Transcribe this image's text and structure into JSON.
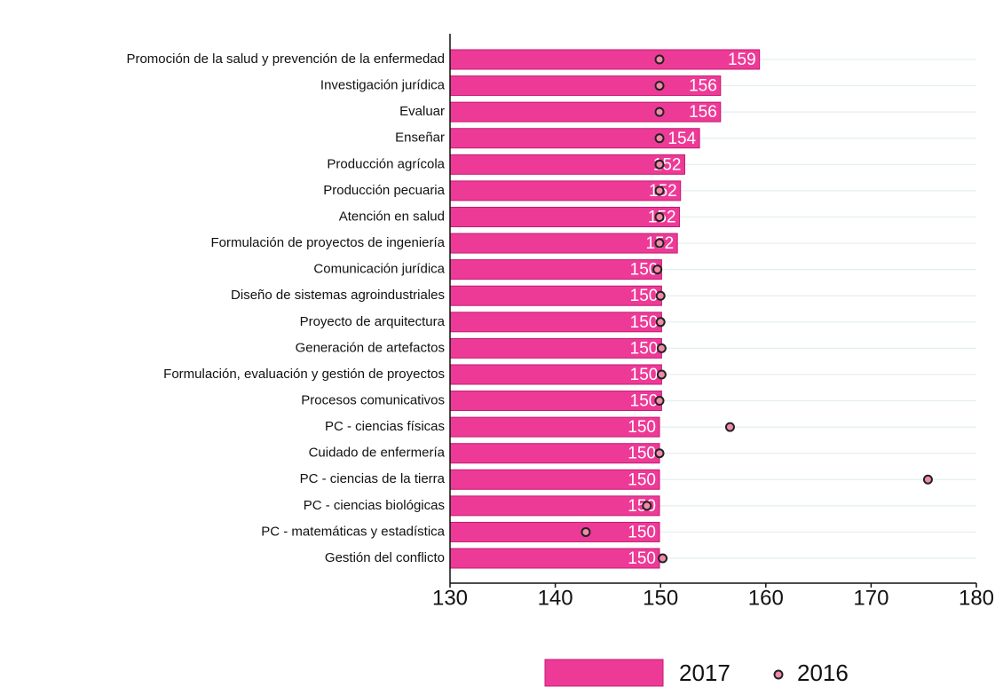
{
  "chart_data": {
    "type": "bar",
    "categories": [
      "Promoción de la salud y prevención de la enfermedad",
      "Investigación jurídica",
      "Evaluar",
      "Enseñar",
      "Producción agrícola",
      "Producción pecuaria",
      "Atención en salud",
      "Formulación de proyectos de ingeniería",
      "Comunicación jurídica",
      "Diseño de sistemas agroindustriales",
      "Proyecto de arquitectura",
      "Generación de artefactos",
      "Formulación, evaluación y gestión de proyectos",
      "Procesos comunicativos",
      "PC - ciencias físicas",
      "Cuidado de enfermería",
      "PC - ciencias de la tierra",
      "PC - ciencias biológicas",
      "PC - matemáticas y estadística",
      "Gestión del conflicto"
    ],
    "series": [
      {
        "name": "2017",
        "color": "#ee3a97",
        "values": [
          159.4,
          155.7,
          155.7,
          153.7,
          152.3,
          151.9,
          151.8,
          151.6,
          150.1,
          150.1,
          150.1,
          150.1,
          150.1,
          150.1,
          149.9,
          149.9,
          149.9,
          149.9,
          149.9,
          149.9
        ],
        "value_labels": [
          "159",
          "156",
          "156",
          "154",
          "152",
          "152",
          "152",
          "152",
          "150",
          "150",
          "150",
          "150",
          "150",
          "150",
          "150",
          "150",
          "150",
          "150",
          "150",
          "150"
        ]
      },
      {
        "name": "2016",
        "color": "#f08aa8",
        "values": [
          149.9,
          149.9,
          149.9,
          149.9,
          149.9,
          149.9,
          149.9,
          149.9,
          149.7,
          150.0,
          150.0,
          150.1,
          150.1,
          149.9,
          156.6,
          149.9,
          175.4,
          148.7,
          142.9,
          150.2
        ]
      }
    ],
    "xlim": [
      130,
      180
    ],
    "xticks": [
      130,
      140,
      150,
      160,
      170,
      180
    ],
    "grid": true
  }
}
